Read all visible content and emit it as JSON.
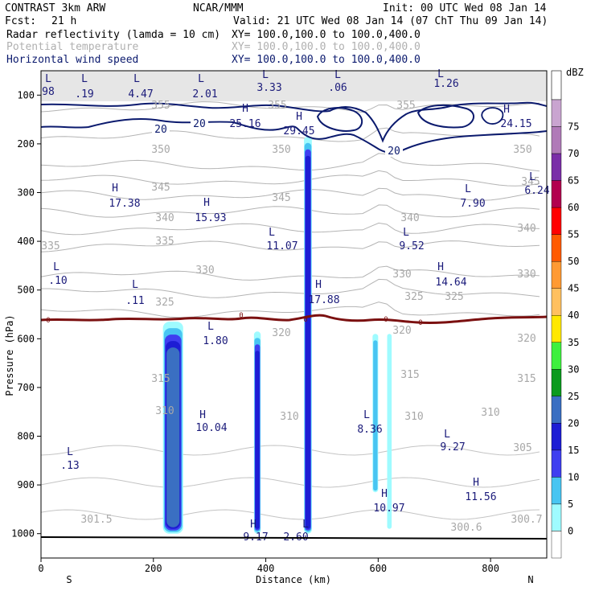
{
  "header": {
    "model": "CONTRAST  3km ARW",
    "center": "NCAR/MMM",
    "init": "Init: 00 UTC Wed 08 Jan 14",
    "fcst_label": "Fcst:",
    "fcst_value": "21 h",
    "valid": "Valid: 21 UTC Wed 08 Jan 14 (07 ChT Thu 09 Jan 14)",
    "fields": [
      {
        "name": "Radar reflectivity (lamda = 10 cm)",
        "xy": "XY= 100.0,100.0 to 100.0,400.0",
        "color": "#000000"
      },
      {
        "name": "Potential temperature",
        "xy": "XY= 100.0,100.0 to 100.0,400.0",
        "color": "#b0b0b0"
      },
      {
        "name": "Horizontal wind speed",
        "xy": "XY= 100.0,100.0 to 100.0,400.0",
        "color": "#0b1a6e"
      }
    ]
  },
  "chart_data": {
    "type": "cross-section",
    "xlabel": "Distance (km)",
    "ylabel": "Pressure (hPa)",
    "x_ticks": [
      "0",
      "200",
      "400",
      "600",
      "800"
    ],
    "x_tick_values": [
      0,
      200,
      400,
      600,
      800
    ],
    "xlim": [
      0,
      900
    ],
    "x_end_labels": {
      "left": "S",
      "right": "N"
    },
    "y_ticks": [
      "100",
      "200",
      "300",
      "400",
      "500",
      "600",
      "700",
      "800",
      "900",
      "1000"
    ],
    "y_tick_values": [
      100,
      200,
      300,
      400,
      500,
      600,
      700,
      800,
      900,
      1000
    ],
    "ylim": [
      50,
      1050
    ],
    "colorbar": {
      "units": "dBZ",
      "levels": [
        "0",
        "5",
        "10",
        "15",
        "20",
        "25",
        "30",
        "35",
        "40",
        "45",
        "50",
        "55",
        "60",
        "65",
        "70",
        "75"
      ],
      "colors": [
        "#ffffff",
        "#9ffbff",
        "#48c5f2",
        "#3f3ff0",
        "#1d1dd4",
        "#3a6fc2",
        "#0b9a1d",
        "#3ef03e",
        "#ffe800",
        "#ffc060",
        "#ff9a33",
        "#ff5a00",
        "#ff0000",
        "#b2004e",
        "#7a2ea8",
        "#b07ab8",
        "#c9a4d0"
      ]
    },
    "reflectivity_columns": [
      {
        "x_center": 235,
        "halfwidth": 18,
        "top": 565,
        "bottom": 1000,
        "max_dbz": 25
      },
      {
        "x_center": 385,
        "halfwidth": 6,
        "top": 585,
        "bottom": 1000,
        "max_dbz": 20
      },
      {
        "x_center": 475,
        "halfwidth": 7,
        "top": 185,
        "bottom": 1000,
        "max_dbz": 20
      },
      {
        "x_center": 595,
        "halfwidth": 5,
        "top": 590,
        "bottom": 915,
        "max_dbz": 10
      },
      {
        "x_center": 620,
        "halfwidth": 4,
        "top": 590,
        "bottom": 990,
        "max_dbz": 5
      }
    ],
    "theta_contours": [
      {
        "level": 355,
        "p": 125
      },
      {
        "level": 350,
        "p": 185
      },
      {
        "level": 345,
        "p": 245
      },
      {
        "level": 340,
        "p": 275
      },
      {
        "level": 335,
        "p": 305
      },
      {
        "level": 330,
        "p": 340
      },
      {
        "level": 325,
        "p": 375
      },
      {
        "level": 320,
        "p": 410
      },
      {
        "level": 315,
        "p": 470
      },
      {
        "level": 310,
        "p": 505
      },
      {
        "level": 305,
        "p": 545
      }
    ],
    "theta_labels": [
      "355",
      "355",
      "355",
      "350",
      "350",
      "350",
      "345",
      "345",
      "345",
      "340",
      "340",
      "340",
      "335",
      "335",
      "330",
      "330",
      "330",
      "325",
      "325",
      "325",
      "320",
      "320",
      "320",
      "315",
      "315",
      "315",
      "310",
      "310",
      "310",
      "310",
      "305",
      "301.5",
      "300.7",
      "300.6"
    ],
    "wind_contour_labels": [
      "20",
      "20",
      "20"
    ],
    "zero_contour_labels": [
      "0",
      "0",
      "0",
      "0",
      "0"
    ],
    "highs_lows": [
      {
        "type": "L",
        "value": "98"
      },
      {
        "type": "L",
        "value": ".19"
      },
      {
        "type": "L",
        "value": "4.47"
      },
      {
        "type": "L",
        "value": "2.01"
      },
      {
        "type": "L",
        "value": "3.33"
      },
      {
        "type": "L",
        "value": ".06"
      },
      {
        "type": "L",
        "value": "1.26"
      },
      {
        "type": "H",
        "value": "25.16"
      },
      {
        "type": "H",
        "value": "29.45"
      },
      {
        "type": "H",
        "value": "24.15"
      },
      {
        "type": "H",
        "value": "17.38"
      },
      {
        "type": "H",
        "value": "15.93"
      },
      {
        "type": "L",
        "value": "7.90"
      },
      {
        "type": "L",
        "value": "6.24"
      },
      {
        "type": "L",
        "value": "11.07"
      },
      {
        "type": "L",
        "value": "9.52"
      },
      {
        "type": "L",
        "value": ".10"
      },
      {
        "type": "H",
        "value": "14.64"
      },
      {
        "type": "L",
        "value": ".11"
      },
      {
        "type": "H",
        "value": "17.88"
      },
      {
        "type": "L",
        "value": "1.80"
      },
      {
        "type": "H",
        "value": "10.04"
      },
      {
        "type": "L",
        "value": "8.36"
      },
      {
        "type": "L",
        "value": "9.27"
      },
      {
        "type": "L",
        "value": ".13"
      },
      {
        "type": "H",
        "value": "11.56"
      },
      {
        "type": "H",
        "value": "10.97"
      },
      {
        "type": "H",
        "value": "9.17"
      },
      {
        "type": "L",
        "value": "2.60"
      }
    ]
  }
}
